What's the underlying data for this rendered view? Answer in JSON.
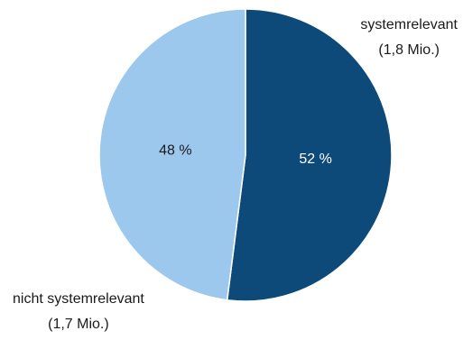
{
  "chart_data": {
    "type": "pie",
    "title": "",
    "slices": [
      {
        "name": "systemrelevant",
        "amount": "(1,8 Mio.)",
        "value": 52,
        "label": "52 %",
        "color": "#0d4a7a",
        "label_color": "#ffffff"
      },
      {
        "name": "nicht systemrelevant",
        "amount": "(1,7 Mio.)",
        "value": 48,
        "label": "48 %",
        "color": "#9dc8ee",
        "label_color": "#1a1a1a"
      }
    ],
    "start": "12 o'clock",
    "direction": "clockwise"
  }
}
